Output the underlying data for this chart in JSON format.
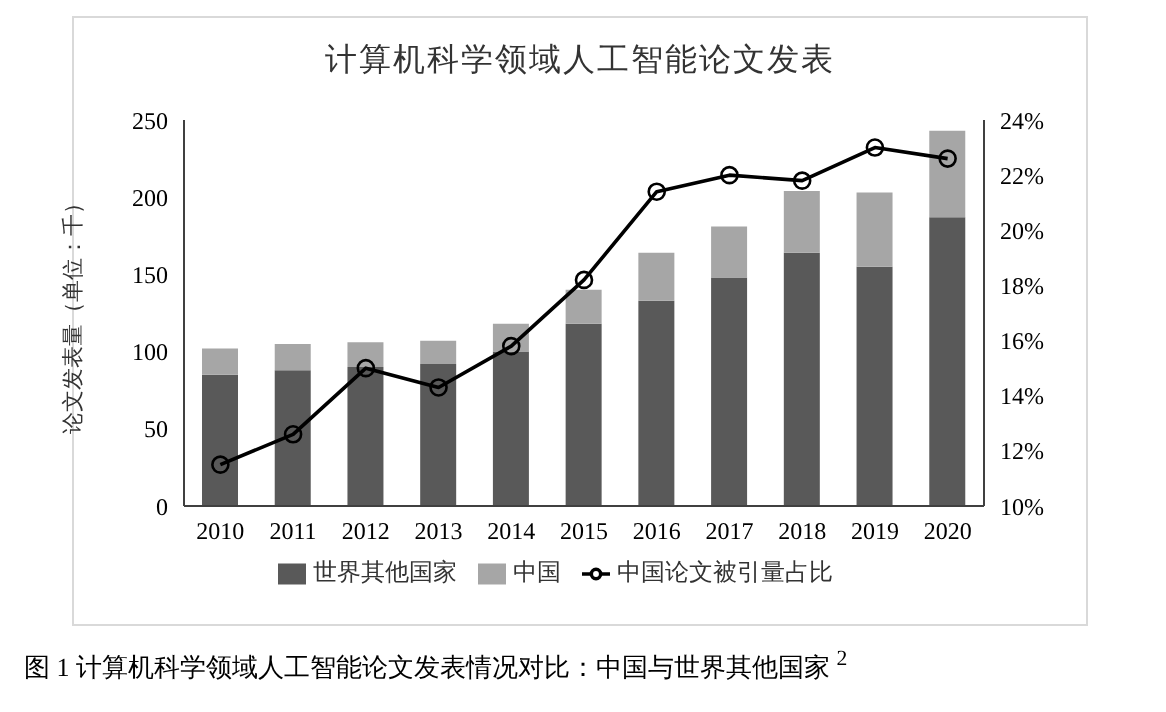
{
  "chart_data": {
    "type": "bar",
    "title": "计算机科学领域人工智能论文发表",
    "ylabel": "论文发表量（单位：千）",
    "annotations": [
      "图 1  计算机科学领域人工智能论文发表情况对比：中国与世界其他国家 $^{2}$"
    ],
    "categories": [
      "2010",
      "2011",
      "2012",
      "2013",
      "2014",
      "2015",
      "2016",
      "2017",
      "2018",
      "2019",
      "2020"
    ],
    "stacked": true,
    "series": [
      {
        "name": "世界其他国家",
        "color": "#595959",
        "values": [
          85,
          88,
          90,
          92,
          100,
          118,
          133,
          148,
          164,
          155,
          187
        ]
      },
      {
        "name": "中国",
        "color": "#a6a6a6",
        "values": [
          17,
          17,
          16,
          15,
          18,
          22,
          31,
          33,
          40,
          48,
          56
        ]
      },
      {
        "name": "中国论文被引量占比",
        "type": "line",
        "axis": "y2",
        "color": "#000000",
        "values": [
          11.5,
          12.6,
          15.0,
          14.3,
          15.8,
          18.2,
          21.4,
          22.0,
          21.8,
          23.0,
          22.6
        ]
      }
    ],
    "ylim": [
      0,
      250
    ],
    "yticks": [
      0,
      50,
      100,
      150,
      200,
      250
    ],
    "y2lim": [
      10,
      24
    ],
    "y2ticks": [
      {
        "value": 10,
        "label": "10%"
      },
      {
        "value": 12,
        "label": "12%"
      },
      {
        "value": 14,
        "label": "14%"
      },
      {
        "value": 16,
        "label": "16%"
      },
      {
        "value": 18,
        "label": "18%"
      },
      {
        "value": 20,
        "label": "20%"
      },
      {
        "value": 22,
        "label": "22%"
      },
      {
        "value": 24,
        "label": "24%"
      }
    ],
    "grid": false,
    "legend": "bottom",
    "marker": "circle",
    "line_style": "solid"
  }
}
